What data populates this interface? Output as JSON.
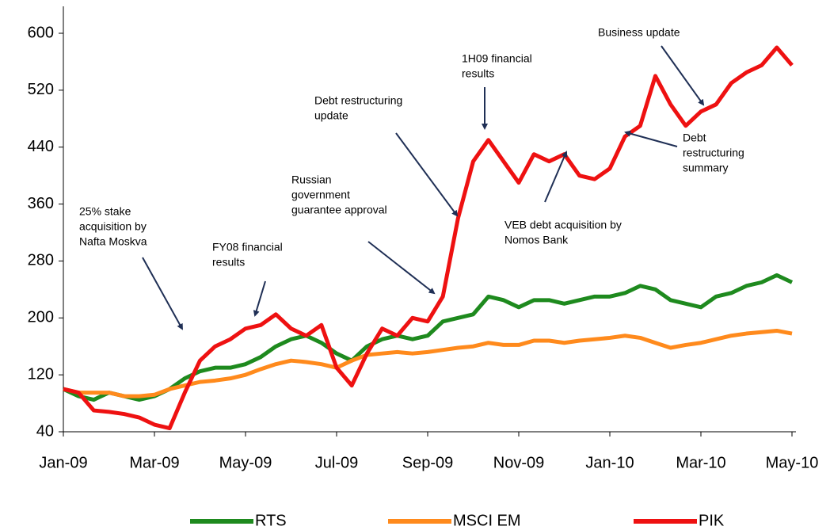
{
  "chart_data": {
    "type": "line",
    "categories": [
      "Jan-09",
      null,
      null,
      null,
      null,
      null,
      "Mar-09",
      null,
      null,
      null,
      null,
      null,
      "May-09",
      null,
      null,
      null,
      null,
      null,
      "Jul-09",
      null,
      null,
      null,
      null,
      null,
      "Sep-09",
      null,
      null,
      null,
      null,
      null,
      "Nov-09",
      null,
      null,
      null,
      null,
      null,
      "Jan-10",
      null,
      null,
      null,
      null,
      null,
      "Mar-10",
      null,
      null,
      null,
      null,
      null,
      "May-10"
    ],
    "series": [
      {
        "name": "RTS",
        "color": "#1e8a1e",
        "values": [
          100,
          90,
          85,
          95,
          90,
          85,
          90,
          100,
          115,
          125,
          130,
          130,
          135,
          145,
          160,
          170,
          175,
          165,
          150,
          140,
          160,
          170,
          175,
          170,
          175,
          195,
          200,
          205,
          230,
          225,
          215,
          225,
          225,
          220,
          225,
          230,
          230,
          235,
          245,
          240,
          225,
          220,
          215,
          230,
          235,
          245,
          250,
          260,
          250
        ]
      },
      {
        "name": "MSCI EM",
        "color": "#ff8a1c",
        "values": [
          100,
          95,
          95,
          95,
          90,
          90,
          92,
          100,
          105,
          110,
          112,
          115,
          120,
          128,
          135,
          140,
          138,
          135,
          130,
          140,
          148,
          150,
          152,
          150,
          152,
          155,
          158,
          160,
          165,
          162,
          162,
          168,
          168,
          165,
          168,
          170,
          172,
          175,
          172,
          165,
          158,
          162,
          165,
          170,
          175,
          178,
          180,
          182,
          178
        ]
      },
      {
        "name": "PIK",
        "color": "#ee1111",
        "values": [
          100,
          95,
          70,
          68,
          65,
          60,
          50,
          45,
          95,
          140,
          160,
          170,
          185,
          190,
          205,
          185,
          175,
          190,
          130,
          105,
          150,
          185,
          175,
          200,
          195,
          230,
          340,
          420,
          450,
          420,
          390,
          430,
          420,
          430,
          400,
          395,
          410,
          455,
          470,
          540,
          500,
          470,
          490,
          500,
          530,
          545,
          555,
          580,
          555
        ]
      }
    ],
    "ylim": [
      40,
      600
    ],
    "yticks": [
      40,
      120,
      200,
      280,
      360,
      440,
      520,
      600
    ],
    "annotations": [
      {
        "lines": [
          "25% stake",
          "acquisition by",
          "Nafta Moskva"
        ]
      },
      {
        "lines": [
          "FY08 financial",
          "results"
        ]
      },
      {
        "lines": [
          "Russian",
          "government",
          "guarantee approval"
        ]
      },
      {
        "lines": [
          "Debt restructuring",
          "update"
        ]
      },
      {
        "lines": [
          "1H09 financial",
          "results"
        ]
      },
      {
        "lines": [
          "Business update"
        ]
      },
      {
        "lines": [
          "Debt",
          "restructuring",
          "summary"
        ]
      },
      {
        "lines": [
          "VEB debt acquisition by",
          "Nomos Bank"
        ]
      }
    ]
  }
}
